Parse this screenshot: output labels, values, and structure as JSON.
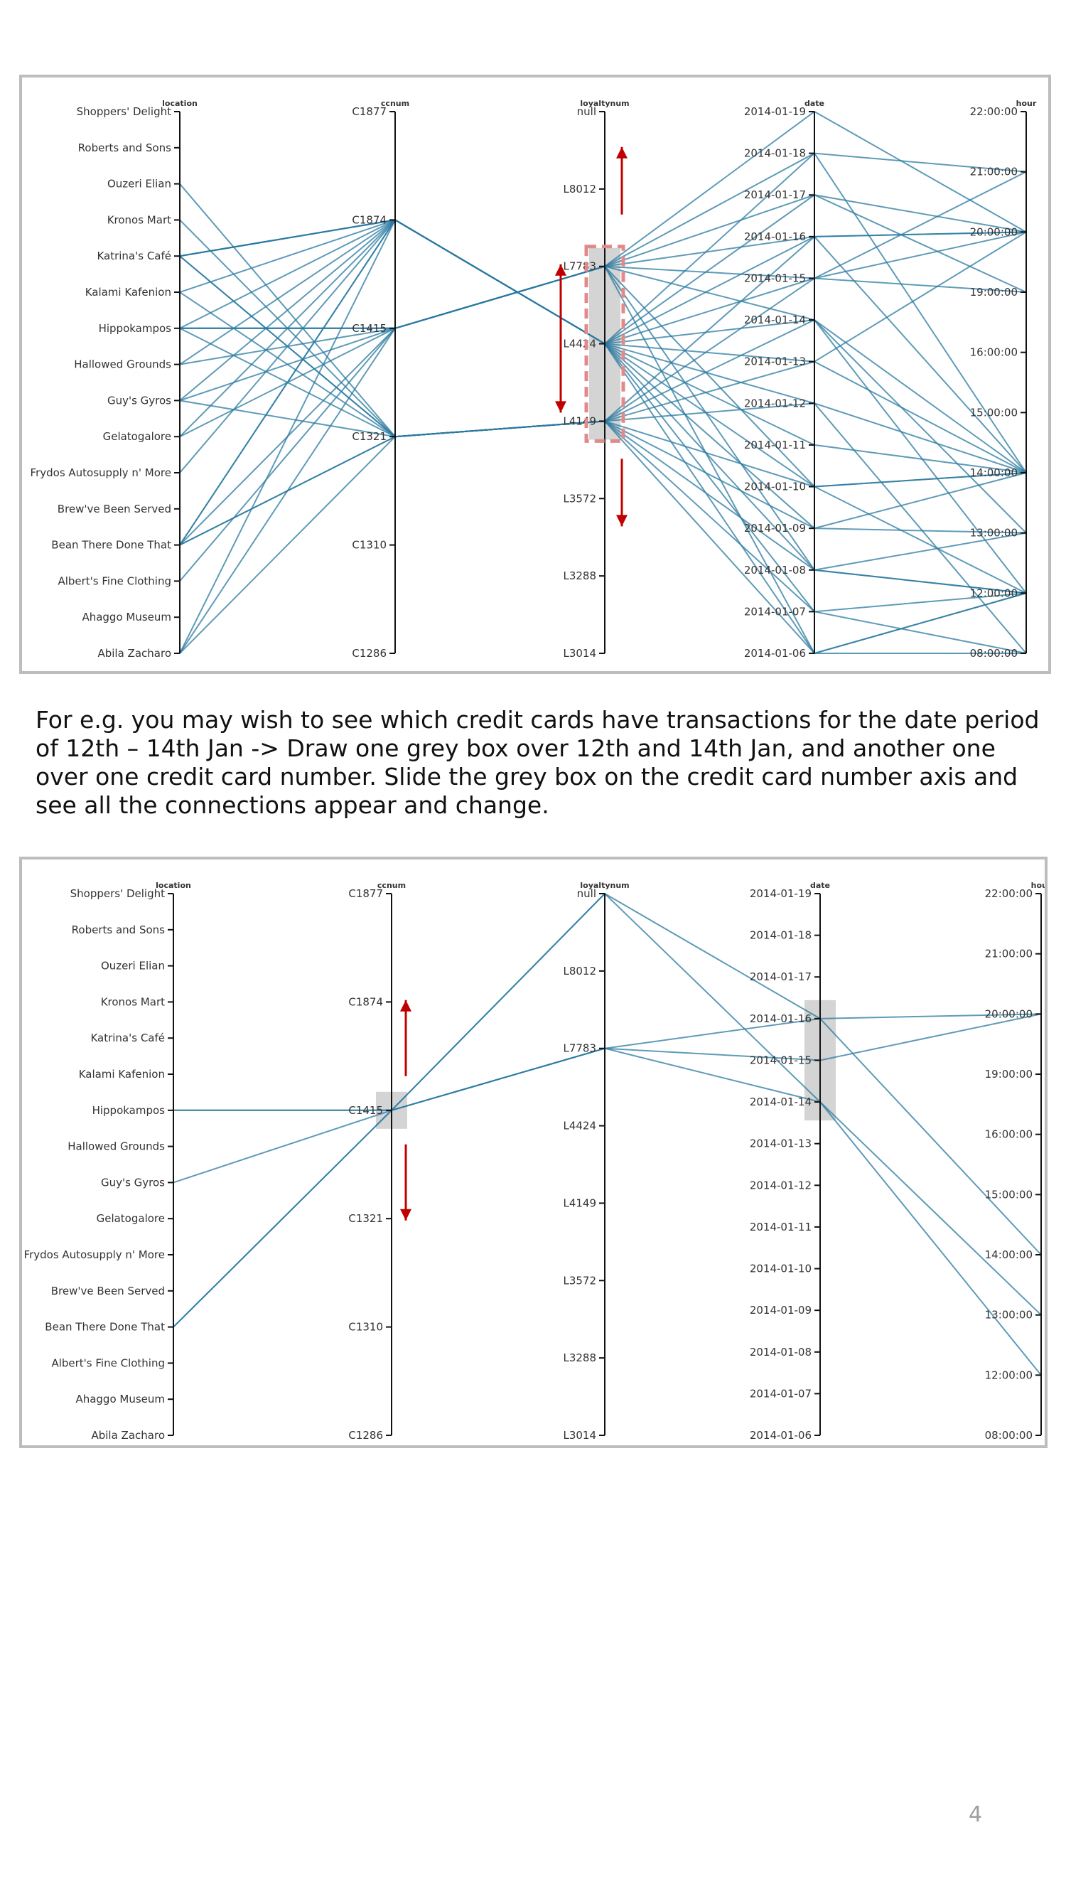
{
  "caption": "For e.g. you may wish to see which credit cards have transactions for the date period of 12th – 14th Jan -> Draw one grey box over 12th and 14th Jan, and another one over one credit card number. Slide the grey box on the credit card number axis and see all the connections appear and change.",
  "page_number": "4",
  "colors": {
    "line": "#2a7aa0",
    "brush": "#cccccc",
    "arrow": "#c00000",
    "highlight_dash": "#e08a8a",
    "border": "#bdbdbd"
  },
  "chart_data": [
    {
      "type": "parallel-coordinates",
      "axes": [
        {
          "name": "location",
          "ticks": [
            "Shoppers' Delight",
            "Roberts and Sons",
            "Ouzeri Elian",
            "Kronos Mart",
            "Katrina's Café",
            "Kalami Kafenion",
            "Hippokampos",
            "Hallowed Grounds",
            "Guy's Gyros",
            "Gelatogalore",
            "Frydos Autosupply n' More",
            "Brew've Been Served",
            "Bean There Done That",
            "Albert's Fine Clothing",
            "Ahaggo Museum",
            "Abila Zacharo"
          ]
        },
        {
          "name": "ccnum",
          "ticks": [
            "C1877",
            "C1874",
            "C1415",
            "C1321",
            "C1310",
            "C1286"
          ]
        },
        {
          "name": "loyaltynum",
          "ticks": [
            "null",
            "L8012",
            "L7783",
            "L4424",
            "L4149",
            "L3572",
            "L3288",
            "L3014"
          ]
        },
        {
          "name": "date",
          "ticks": [
            "2014-01-19",
            "2014-01-18",
            "2014-01-17",
            "2014-01-16",
            "2014-01-15",
            "2014-01-14",
            "2014-01-13",
            "2014-01-12",
            "2014-01-11",
            "2014-01-10",
            "2014-01-09",
            "2014-01-08",
            "2014-01-07",
            "2014-01-06"
          ]
        },
        {
          "name": "hour",
          "ticks": [
            "22:00:00",
            "21:00:00",
            "20:00:00",
            "19:00:00",
            "16:00:00",
            "15:00:00",
            "14:00:00",
            "13:00:00",
            "12:00:00",
            "08:00:00"
          ]
        }
      ],
      "brushes": [
        {
          "axis": "loyaltynum",
          "from": "L7783",
          "to": "L4149"
        }
      ],
      "lines": [
        [
          "Ouzeri Elian",
          "C1321",
          "L4149",
          "2014-01-06",
          "08:00:00"
        ],
        [
          "Katrina's Café",
          "C1874",
          "L4424",
          "2014-01-08",
          "12:00:00"
        ],
        [
          "Katrina's Café",
          "C1874",
          "L4424",
          "2014-01-10",
          "14:00:00"
        ],
        [
          "Katrina's Café",
          "C1874",
          "L4424",
          "2014-01-13",
          "20:00:00"
        ],
        [
          "Katrina's Café",
          "C1874",
          "L4424",
          "2014-01-16",
          "20:00:00"
        ],
        [
          "Katrina's Café",
          "C1321",
          "L4149",
          "2014-01-09",
          "13:00:00"
        ],
        [
          "Katrina's Café",
          "C1321",
          "L4149",
          "2014-01-07",
          "12:00:00"
        ],
        [
          "Kronos Mart",
          "C1321",
          "L4149",
          "2014-01-14",
          "14:00:00"
        ],
        [
          "Kalami Kafenion",
          "C1874",
          "L4424",
          "2014-01-15",
          "19:00:00"
        ],
        [
          "Kalami Kafenion",
          "C1321",
          "L4149",
          "2014-01-10",
          "12:00:00"
        ],
        [
          "Hippokampos",
          "C1874",
          "L4424",
          "2014-01-17",
          "20:00:00"
        ],
        [
          "Hippokampos",
          "C1415",
          "L7783",
          "2014-01-19",
          "20:00:00"
        ],
        [
          "Hippokampos",
          "C1415",
          "L7783",
          "2014-01-16",
          "14:00:00"
        ],
        [
          "Hippokampos",
          "C1415",
          "L7783",
          "2014-01-14",
          "13:00:00"
        ],
        [
          "Hippokampos",
          "C1321",
          "L4149",
          "2014-01-08",
          "12:00:00"
        ],
        [
          "Hallowed Grounds",
          "C1874",
          "L4424",
          "2014-01-12",
          "08:00:00"
        ],
        [
          "Hallowed Grounds",
          "C1415",
          "L7783",
          "2014-01-18",
          "21:00:00"
        ],
        [
          "Guy's Gyros",
          "C1874",
          "L4424",
          "2014-01-11",
          "14:00:00"
        ],
        [
          "Guy's Gyros",
          "C1415",
          "L7783",
          "2014-01-15",
          "20:00:00"
        ],
        [
          "Guy's Gyros",
          "C1321",
          "L4149",
          "2014-01-13",
          "14:00:00"
        ],
        [
          "Gelatogalore",
          "C1874",
          "L4424",
          "2014-01-09",
          "14:00:00"
        ],
        [
          "Gelatogalore",
          "C1415",
          "L7783",
          "2014-01-17",
          "19:00:00"
        ],
        [
          "Frydos Autosupply n' More",
          "C1874",
          "L4424",
          "2014-01-06",
          "12:00:00"
        ],
        [
          "Bean There Done That",
          "C1874",
          "L4424",
          "2014-01-18",
          "14:00:00"
        ],
        [
          "Bean There Done That",
          "C1874",
          "L4424",
          "2014-01-07",
          "08:00:00"
        ],
        [
          "Bean There Done That",
          "C1415",
          "L7783",
          "2014-01-10",
          "14:00:00"
        ],
        [
          "Bean There Done That",
          "C1321",
          "L4149",
          "2014-01-16",
          "20:00:00"
        ],
        [
          "Bean There Done That",
          "C1321",
          "L4149",
          "2014-01-12",
          "14:00:00"
        ],
        [
          "Albert's Fine Clothing",
          "C1415",
          "L7783",
          "2014-01-08",
          "13:00:00"
        ],
        [
          "Abila Zacharo",
          "C1874",
          "L4424",
          "2014-01-14",
          "12:00:00"
        ],
        [
          "Abila Zacharo",
          "C1415",
          "L7783",
          "2014-01-06",
          "12:00:00"
        ],
        [
          "Abila Zacharo",
          "C1321",
          "L4149",
          "2014-01-15",
          "21:00:00"
        ]
      ]
    },
    {
      "type": "parallel-coordinates",
      "axes": [
        {
          "name": "location",
          "ticks": [
            "Shoppers' Delight",
            "Roberts and Sons",
            "Ouzeri Elian",
            "Kronos Mart",
            "Katrina's Café",
            "Kalami Kafenion",
            "Hippokampos",
            "Hallowed Grounds",
            "Guy's Gyros",
            "Gelatogalore",
            "Frydos Autosupply n' More",
            "Brew've Been Served",
            "Bean There Done That",
            "Albert's Fine Clothing",
            "Ahaggo Museum",
            "Abila Zacharo"
          ]
        },
        {
          "name": "ccnum",
          "ticks": [
            "C1877",
            "C1874",
            "C1415",
            "C1321",
            "C1310",
            "C1286"
          ]
        },
        {
          "name": "loyaltynum",
          "ticks": [
            "null",
            "L8012",
            "L7783",
            "L4424",
            "L4149",
            "L3572",
            "L3288",
            "L3014"
          ]
        },
        {
          "name": "date",
          "ticks": [
            "2014-01-19",
            "2014-01-18",
            "2014-01-17",
            "2014-01-16",
            "2014-01-15",
            "2014-01-14",
            "2014-01-13",
            "2014-01-12",
            "2014-01-11",
            "2014-01-10",
            "2014-01-09",
            "2014-01-08",
            "2014-01-07",
            "2014-01-06"
          ]
        },
        {
          "name": "hour",
          "ticks": [
            "22:00:00",
            "21:00:00",
            "20:00:00",
            "19:00:00",
            "16:00:00",
            "15:00:00",
            "14:00:00",
            "13:00:00",
            "12:00:00",
            "08:00:00"
          ]
        }
      ],
      "brushes": [
        {
          "axis": "ccnum",
          "from": "C1415",
          "to": "C1415"
        },
        {
          "axis": "date",
          "from": "2014-01-16",
          "to": "2014-01-14"
        }
      ],
      "lines": [
        [
          "Hippokampos",
          "C1415",
          "null",
          "2014-01-16",
          "14:00:00"
        ],
        [
          "Guy's Gyros",
          "C1415",
          "L7783",
          "2014-01-16",
          "20:00:00"
        ],
        [
          "Bean There Done That",
          "C1415",
          "L7783",
          "2014-01-15",
          "20:00:00"
        ],
        [
          "Hippokampos",
          "C1415",
          "L7783",
          "2014-01-14",
          "13:00:00"
        ],
        [
          "Bean There Done That",
          "C1415",
          "null",
          "2014-01-14",
          "12:00:00"
        ]
      ]
    }
  ]
}
